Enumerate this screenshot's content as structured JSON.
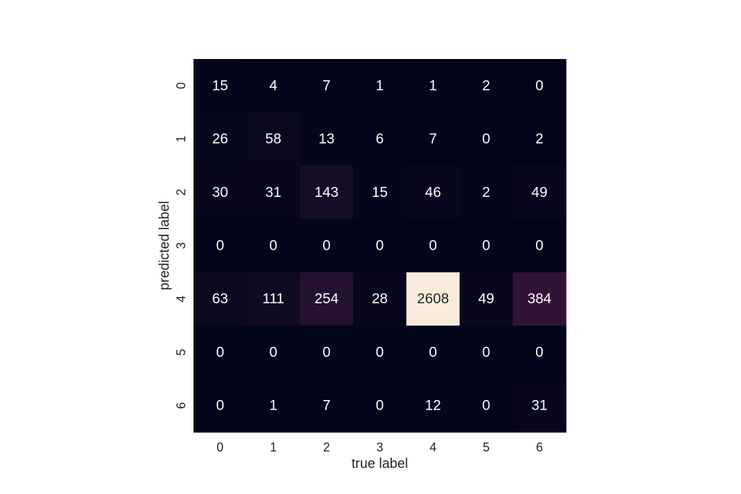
{
  "chart_data": {
    "type": "heatmap",
    "xlabel": "true label",
    "ylabel": "predicted label",
    "x_categories": [
      "0",
      "1",
      "2",
      "3",
      "4",
      "5",
      "6"
    ],
    "y_categories": [
      "0",
      "1",
      "2",
      "3",
      "4",
      "5",
      "6"
    ],
    "values": [
      [
        15,
        4,
        7,
        1,
        1,
        2,
        0
      ],
      [
        26,
        58,
        13,
        6,
        7,
        0,
        2
      ],
      [
        30,
        31,
        143,
        15,
        46,
        2,
        49
      ],
      [
        0,
        0,
        0,
        0,
        0,
        0,
        0
      ],
      [
        63,
        111,
        254,
        28,
        2608,
        49,
        384
      ],
      [
        0,
        0,
        0,
        0,
        0,
        0,
        0
      ],
      [
        0,
        1,
        7,
        0,
        12,
        0,
        31
      ]
    ],
    "value_range": [
      0,
      2608
    ],
    "colormap": "rocket",
    "annotate": true,
    "colorbar": false
  }
}
